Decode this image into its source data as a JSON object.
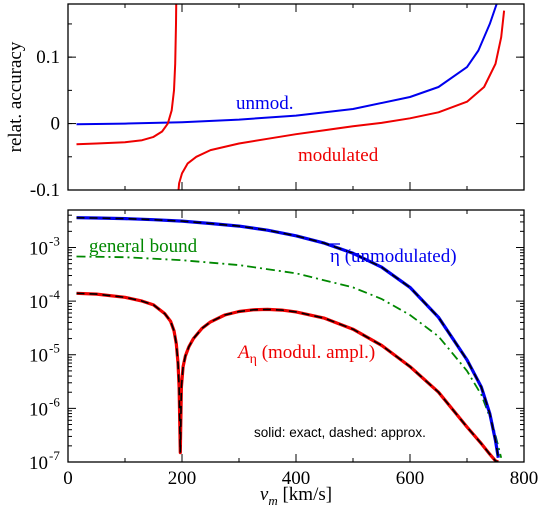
{
  "chart_data": [
    {
      "type": "line",
      "panel": "top",
      "ylabel": "relat. accuracy",
      "xlim": [
        0,
        800
      ],
      "ylim": [
        -0.1,
        0.18
      ],
      "y_ticks": [
        {
          "value": -0.1,
          "label": "-0.1"
        },
        {
          "value": 0,
          "label": "0"
        },
        {
          "value": 0.1,
          "label": "0.1"
        }
      ],
      "x_ticks": [
        0,
        200,
        400,
        600,
        800
      ],
      "series": [
        {
          "name": "unmod.",
          "color": "#0000ee",
          "x": [
            15,
            100,
            200,
            300,
            400,
            500,
            600,
            650,
            700,
            720,
            740,
            750,
            754
          ],
          "y": [
            -0.001,
            0.0,
            0.002,
            0.006,
            0.012,
            0.022,
            0.04,
            0.055,
            0.085,
            0.11,
            0.15,
            0.175,
            0.185
          ]
        },
        {
          "name": "modulated",
          "color": "#ee0000",
          "x": [
            15,
            50,
            100,
            130,
            150,
            165,
            175,
            182,
            186,
            188,
            189.5,
            190,
            190.01,
            192,
            195,
            200,
            210,
            225,
            250,
            300,
            350,
            400,
            450,
            500,
            550,
            600,
            650,
            700,
            730,
            750,
            760,
            765
          ],
          "y": [
            -0.031,
            -0.03,
            -0.028,
            -0.025,
            -0.02,
            -0.012,
            0.0,
            0.02,
            0.05,
            0.09,
            0.15,
            0.19,
            -0.19,
            -0.12,
            -0.09,
            -0.075,
            -0.06,
            -0.05,
            -0.04,
            -0.03,
            -0.023,
            -0.016,
            -0.01,
            -0.004,
            0.001,
            0.008,
            0.017,
            0.033,
            0.055,
            0.09,
            0.13,
            0.17
          ]
        }
      ],
      "annotations": [
        "unmod.",
        "modulated"
      ]
    },
    {
      "type": "line",
      "panel": "bottom",
      "xlabel_main": "v",
      "xlabel_sub": "m",
      "xlabel_unit": " [km/s]",
      "xlim": [
        0,
        800
      ],
      "ylim": [
        1e-07,
        0.005
      ],
      "yscale": "log",
      "x_ticks": [
        {
          "value": 0,
          "label": "0"
        },
        {
          "value": 200,
          "label": "200"
        },
        {
          "value": 400,
          "label": "400"
        },
        {
          "value": 600,
          "label": "600"
        },
        {
          "value": 800,
          "label": "800"
        }
      ],
      "y_ticks": [
        {
          "value": 1e-07,
          "exp": "-7"
        },
        {
          "value": 1e-06,
          "exp": "-6"
        },
        {
          "value": 1e-05,
          "exp": "-5"
        },
        {
          "value": 0.0001,
          "exp": "-4"
        },
        {
          "value": 0.001,
          "exp": "-3"
        }
      ],
      "series": [
        {
          "name": "η̄ (unmodulated)",
          "color": "#0000ee",
          "x": [
            15,
            50,
            100,
            150,
            200,
            250,
            300,
            350,
            400,
            450,
            500,
            550,
            600,
            650,
            700,
            725,
            740,
            750,
            755
          ],
          "y": [
            0.0036,
            0.00355,
            0.00345,
            0.0033,
            0.0031,
            0.0028,
            0.0025,
            0.0021,
            0.00165,
            0.0012,
            0.00078,
            0.00043,
            0.00018,
            5e-05,
            8e-06,
            2.5e-06,
            8e-07,
            2.5e-07,
            1.2e-07
          ]
        },
        {
          "name": "A_η (modul. ampl.)",
          "color": "#ee0000",
          "x": [
            15,
            50,
            100,
            130,
            150,
            170,
            180,
            186,
            190,
            193,
            195,
            197,
            199,
            202,
            206,
            212,
            220,
            235,
            250,
            275,
            300,
            325,
            350,
            375,
            400,
            450,
            500,
            550,
            600,
            650,
            700,
            725,
            740,
            750,
            755
          ],
          "y": [
            0.00014,
            0.000135,
            0.000118,
            0.0001,
            8.5e-05,
            5.8e-05,
            4.2e-05,
            2.8e-05,
            1.6e-05,
            7e-06,
            2.5e-06,
            1.5e-07,
            2.5e-06,
            6e-06,
            9.5e-06,
            1.4e-05,
            2e-05,
            3.1e-05,
            4.1e-05,
            5.5e-05,
            6.4e-05,
            6.9e-05,
            7e-05,
            6.8e-05,
            6.3e-05,
            4.8e-05,
            3e-05,
            1.5e-05,
            6e-06,
            2e-06,
            4.5e-07,
            2.2e-07,
            1.4e-07,
            1.05e-07,
            1e-07
          ]
        },
        {
          "name": "general bound",
          "color": "#008800",
          "x": [
            15,
            100,
            200,
            300,
            400,
            500,
            550,
            600,
            650,
            700,
            725,
            745,
            760
          ],
          "y": [
            0.00068,
            0.00066,
            0.00058,
            0.00047,
            0.00033,
            0.00018,
            0.00011,
            5.5e-05,
            2.2e-05,
            5e-06,
            1.8e-06,
            5e-07,
            1.2e-07
          ]
        }
      ],
      "annotations": {
        "bound": "general bound",
        "unmod_symbol": "η",
        "unmod_text": " (unmodulated)",
        "mod_A": "A",
        "mod_sub": "η",
        "mod_text": " (modul. ampl.)",
        "legend_note": "solid: exact, dashed: approx."
      }
    }
  ]
}
